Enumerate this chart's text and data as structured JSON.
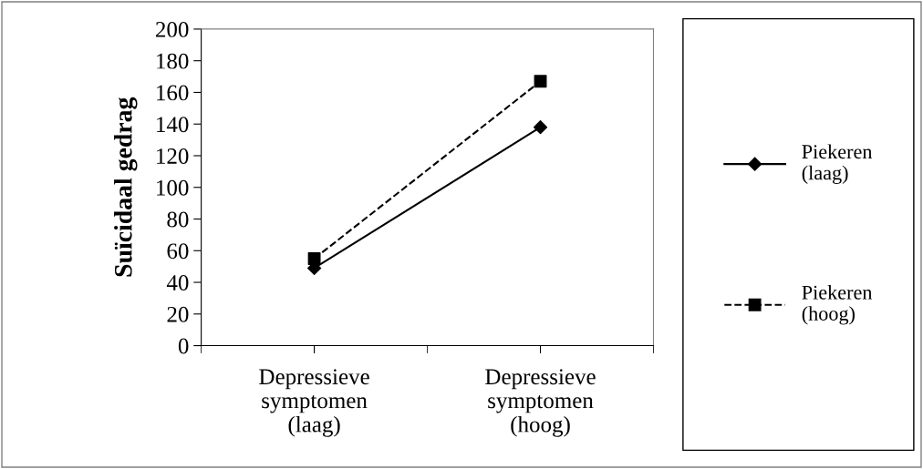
{
  "chart_data": {
    "type": "line",
    "ylabel": "Suïcidaal gedrag",
    "categories": [
      "Depressieve\nsymptomen\n(laag)",
      "Depressieve\nsymptomen\n(hoog)"
    ],
    "series": [
      {
        "name": "Piekeren\n(laag)",
        "color": "#000000",
        "values": [
          49,
          138
        ],
        "marker": "diamond",
        "line_style": "solid"
      },
      {
        "name": "Piekeren\n(hoog)",
        "color": "#000000",
        "values": [
          55,
          167
        ],
        "marker": "square",
        "line_style": "dashed"
      }
    ],
    "ylim": [
      0,
      200
    ],
    "yticks": [
      0,
      20,
      40,
      60,
      80,
      100,
      120,
      140,
      160,
      180,
      200
    ],
    "grid": false,
    "legend": "right"
  }
}
